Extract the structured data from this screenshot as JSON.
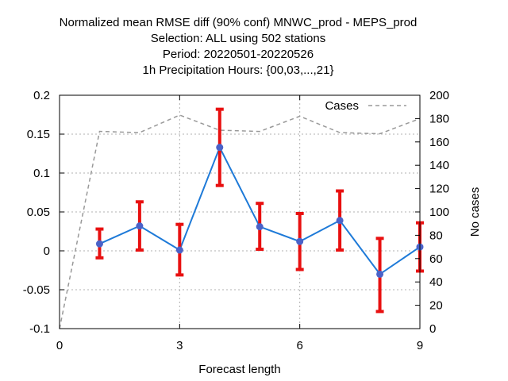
{
  "chart_data": {
    "type": "line",
    "title_lines": [
      "Normalized mean RMSE diff (90% conf) MNWC_prod - MEPS_prod",
      "Selection: ALL using   502 stations",
      "Period: 20220501-20220526",
      "1h Precipitation    Hours: {00,03,...,21}"
    ],
    "xlabel": "Forecast length",
    "ylabel_left": "",
    "ylabel_right": "No cases",
    "xlim": [
      0,
      9
    ],
    "ylim_left": [
      -0.1,
      0.2
    ],
    "ylim_right": [
      0,
      200
    ],
    "xticks": [
      "0",
      "3",
      "6",
      "9"
    ],
    "yticks_left": [
      "-0.1",
      "-0.05",
      "0",
      "0.05",
      "0.1",
      "0.15",
      "0.2"
    ],
    "yticks_right": [
      "0",
      "20",
      "40",
      "60",
      "80",
      "100",
      "120",
      "140",
      "160",
      "180",
      "200"
    ],
    "grid": true,
    "legend": {
      "position": "top-right",
      "entries": [
        "Cases"
      ]
    },
    "colors": {
      "line": "#1e7ad8",
      "marker": "#4a62c8",
      "errorbar": "#e81010",
      "cases": "#999999",
      "grid": "#b0b0b0"
    },
    "series": [
      {
        "x": [
          1,
          2,
          3,
          4,
          5,
          6,
          7,
          8,
          9
        ],
        "values": [
          0.009,
          0.032,
          0.001,
          0.133,
          0.031,
          0.012,
          0.039,
          -0.03,
          0.005
        ],
        "lower": [
          -0.009,
          0.001,
          -0.031,
          0.084,
          0.002,
          -0.024,
          0.001,
          -0.078,
          -0.026
        ],
        "upper": [
          0.028,
          0.063,
          0.034,
          0.182,
          0.061,
          0.048,
          0.077,
          0.016,
          0.036
        ]
      },
      {
        "name": "Cases",
        "axis": "right",
        "x": [
          0,
          1,
          2,
          3,
          4,
          5,
          6,
          7,
          8,
          9
        ],
        "values": [
          0,
          169,
          168,
          183,
          170,
          169,
          182,
          168,
          167,
          180
        ]
      }
    ]
  }
}
